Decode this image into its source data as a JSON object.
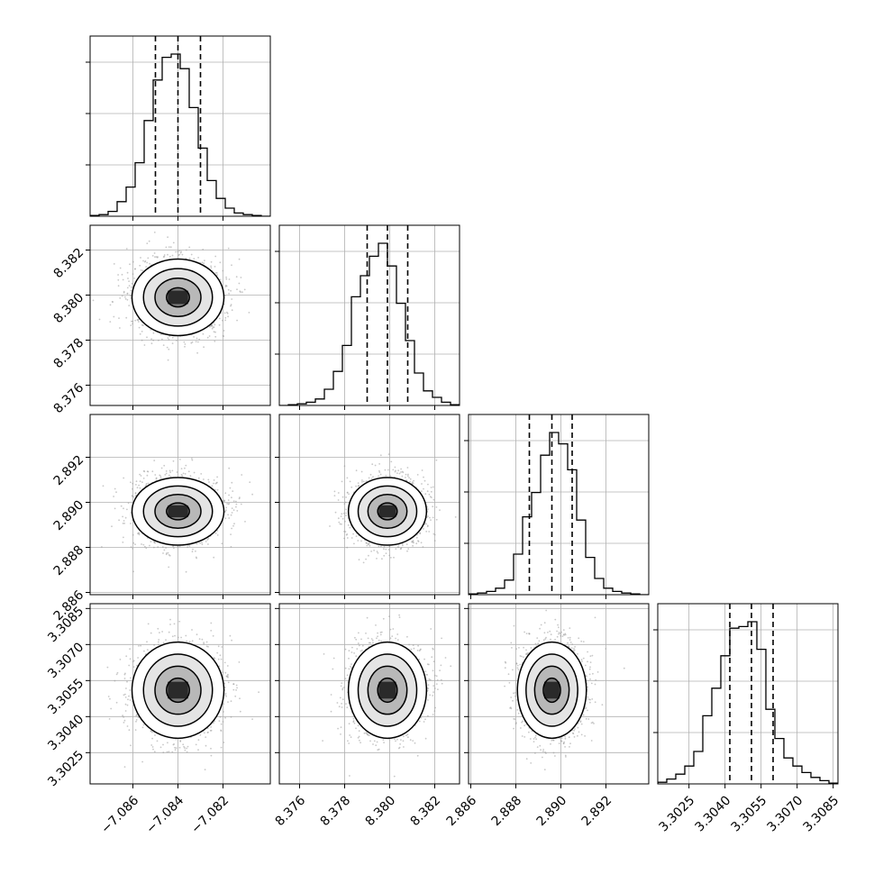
{
  "chart_data": {
    "type": "corner",
    "grid": true,
    "params": [
      {
        "mean": -7.084,
        "sd": 0.001,
        "range": [
          -7.0879,
          -7.0799
        ],
        "quantiles": [
          -7.085,
          -7.084,
          -7.083
        ],
        "ticks": [
          -7.086,
          -7.084,
          -7.082
        ],
        "tick_labels": [
          "−7.086",
          "−7.084",
          "−7.082"
        ],
        "hist": [
          0.005,
          0.01,
          0.03,
          0.09,
          0.18,
          0.33,
          0.59,
          0.84,
          0.98,
          1.0,
          0.91,
          0.67,
          0.42,
          0.22,
          0.11,
          0.05,
          0.02,
          0.01,
          0.005,
          0.0
        ]
      },
      {
        "mean": 8.3799,
        "sd": 0.00085,
        "range": [
          8.3751,
          8.3831
        ],
        "quantiles": [
          8.379,
          8.3799,
          8.3808
        ],
        "ticks": [
          8.376,
          8.378,
          8.38,
          8.382
        ],
        "tick_labels": [
          "8.376",
          "8.378",
          "8.380",
          "8.382"
        ],
        "hist": [
          0.0,
          0.005,
          0.01,
          0.02,
          0.04,
          0.1,
          0.21,
          0.37,
          0.67,
          0.8,
          0.92,
          1.0,
          0.86,
          0.63,
          0.4,
          0.2,
          0.09,
          0.05,
          0.02,
          0.005
        ]
      },
      {
        "mean": 2.8896,
        "sd": 0.00075,
        "range": [
          2.8859,
          2.8939
        ],
        "quantiles": [
          2.8886,
          2.8896,
          2.8905
        ],
        "ticks": [
          2.886,
          2.888,
          2.89,
          2.892
        ],
        "tick_labels": [
          "2.886",
          "2.888",
          "2.890",
          "2.892"
        ],
        "hist": [
          0.005,
          0.01,
          0.02,
          0.04,
          0.09,
          0.25,
          0.48,
          0.63,
          0.86,
          1.0,
          0.93,
          0.77,
          0.46,
          0.23,
          0.1,
          0.04,
          0.02,
          0.01,
          0.005,
          0.0
        ]
      },
      {
        "mean": 3.3051,
        "sd": 0.001,
        "range": [
          3.3012,
          3.3087
        ],
        "quantiles": [
          3.3042,
          3.3051,
          3.306
        ],
        "ticks": [
          3.3025,
          3.304,
          3.3055,
          3.307,
          3.3085
        ],
        "tick_labels": [
          "3.3025",
          "3.3040",
          "3.3055",
          "3.3070",
          "3.3085"
        ],
        "hist": [
          0.01,
          0.03,
          0.06,
          0.11,
          0.2,
          0.42,
          0.59,
          0.79,
          0.96,
          0.97,
          1.0,
          0.83,
          0.46,
          0.28,
          0.16,
          0.11,
          0.07,
          0.04,
          0.02,
          0.005
        ]
      }
    ],
    "contour_levels_sigma": [
      0.5,
      1.0,
      1.5,
      2.0
    ]
  }
}
